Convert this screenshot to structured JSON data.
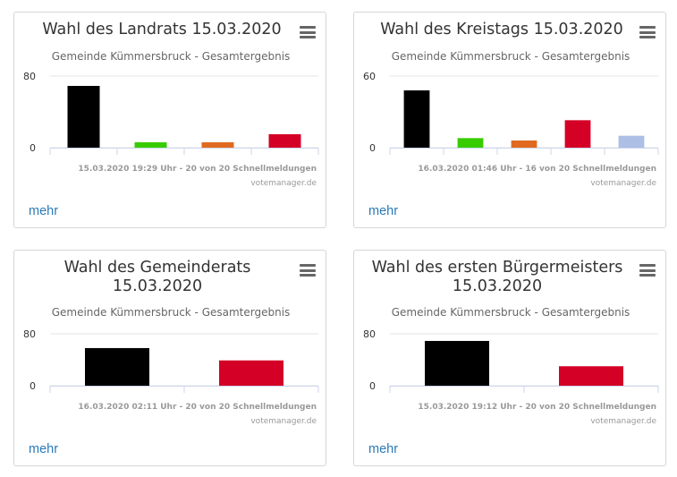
{
  "menu_icon": "hamburger-menu-icon",
  "more_label": "mehr",
  "credit": "votemanager.de",
  "cards": [
    {
      "title": "Wahl des Landrats 15.03.2020",
      "subtitle": "Gemeinde Kümmersbruck - Gesamtergebnis",
      "status": "15.03.2020 19:29 Uhr - 20 von 20 Schnellmeldungen"
    },
    {
      "title": "Wahl des Kreistags 15.03.2020",
      "subtitle": "Gemeinde Kümmersbruck - Gesamtergebnis",
      "status": "16.03.2020 01:46 Uhr - 16 von 20 Schnellmeldungen"
    },
    {
      "title": "Wahl des Gemeinderats\n15.03.2020",
      "subtitle": "Gemeinde Kümmersbruck - Gesamtergebnis",
      "status": "16.03.2020 02:11 Uhr - 20 von 20 Schnellmeldungen"
    },
    {
      "title": "Wahl des ersten Bürgermeisters\n15.03.2020",
      "subtitle": "Gemeinde Kümmersbruck - Gesamtergebnis",
      "status": "15.03.2020 19:12 Uhr - 20 von 20 Schnellmeldungen"
    }
  ],
  "chart_data": [
    {
      "type": "bar",
      "title": "Wahl des Landrats 15.03.2020",
      "subtitle": "Gemeinde Kümmersbruck - Gesamtergebnis",
      "values": [
        69,
        6,
        6,
        15
      ],
      "colors": [
        "#000000",
        "#37cc00",
        "#e06a20",
        "#d40026"
      ],
      "ylim": [
        0,
        80
      ],
      "yticks": [
        0,
        80
      ],
      "grid": true
    },
    {
      "type": "bar",
      "title": "Wahl des Kreistags 15.03.2020",
      "subtitle": "Gemeinde Kümmersbruck - Gesamtergebnis",
      "values": [
        48,
        8,
        6,
        23,
        10
      ],
      "colors": [
        "#000000",
        "#37cc00",
        "#e06a20",
        "#d40026",
        "#aebfe6"
      ],
      "ylim": [
        0,
        60
      ],
      "yticks": [
        0,
        60
      ],
      "grid": true
    },
    {
      "type": "bar",
      "title": "Wahl des Gemeinderats 15.03.2020",
      "subtitle": "Gemeinde Kümmersbruck - Gesamtergebnis",
      "values": [
        58,
        39
      ],
      "colors": [
        "#000000",
        "#d40026"
      ],
      "ylim": [
        0,
        80
      ],
      "yticks": [
        0,
        80
      ],
      "grid": true
    },
    {
      "type": "bar",
      "title": "Wahl des ersten Bürgermeisters 15.03.2020",
      "subtitle": "Gemeinde Kümmersbruck - Gesamtergebnis",
      "values": [
        69,
        30
      ],
      "colors": [
        "#000000",
        "#d40026"
      ],
      "ylim": [
        0,
        80
      ],
      "yticks": [
        0,
        80
      ],
      "grid": true
    }
  ]
}
